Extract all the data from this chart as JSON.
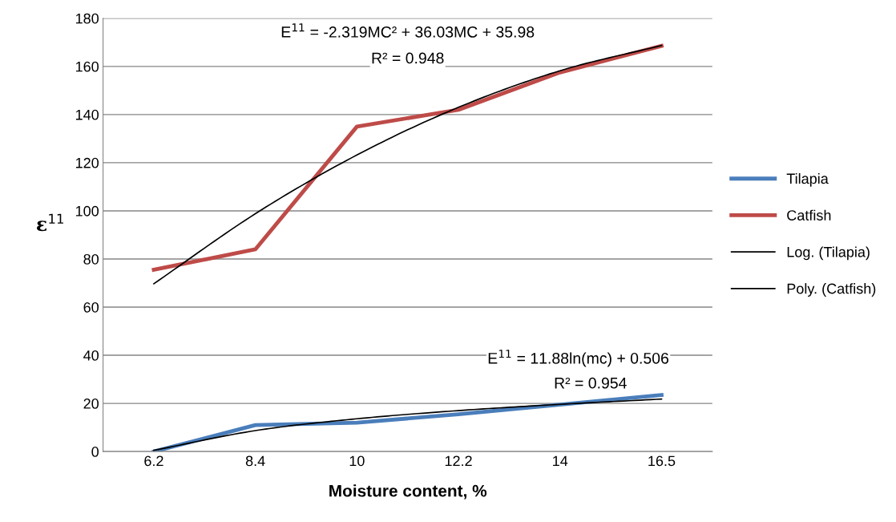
{
  "chart_data": {
    "type": "line",
    "xlabel": "Moisture content, %",
    "ylabel": "ε$^{11}$",
    "categories": [
      "6.2",
      "8.4",
      "10",
      "12.2",
      "14",
      "16.5"
    ],
    "series": [
      {
        "name": "Tilapia",
        "color": "#4a7ebb",
        "values": [
          0,
          11,
          12,
          15.5,
          19.5,
          23.5
        ]
      },
      {
        "name": "Catfish",
        "color": "#be4b48",
        "values": [
          75.5,
          84,
          135,
          142,
          157.5,
          168.5
        ]
      },
      {
        "name": "Log. (Tilapia)",
        "color": "#000000",
        "values": [
          0.5,
          8.7,
          13.6,
          17,
          19.6,
          21.8
        ]
      },
      {
        "name": "Poly. (Catfish)",
        "color": "#000000",
        "values": [
          69.7,
          98.8,
          123.2,
          143,
          158.2,
          168.7
        ]
      }
    ],
    "ylim": [
      0,
      180
    ],
    "yticks": [
      0,
      20,
      40,
      60,
      80,
      100,
      120,
      140,
      160,
      180
    ],
    "grid": "y",
    "legend": "right",
    "marker": "none",
    "line_style": "solid",
    "annotations": [
      "E$^{11}$ = -2.319MC² + 36.03MC + 35.98",
      "R² = 0.948",
      "E$^{11}$ = 11.88ln(mc) + 0.506",
      "R² = 0.954"
    ]
  }
}
